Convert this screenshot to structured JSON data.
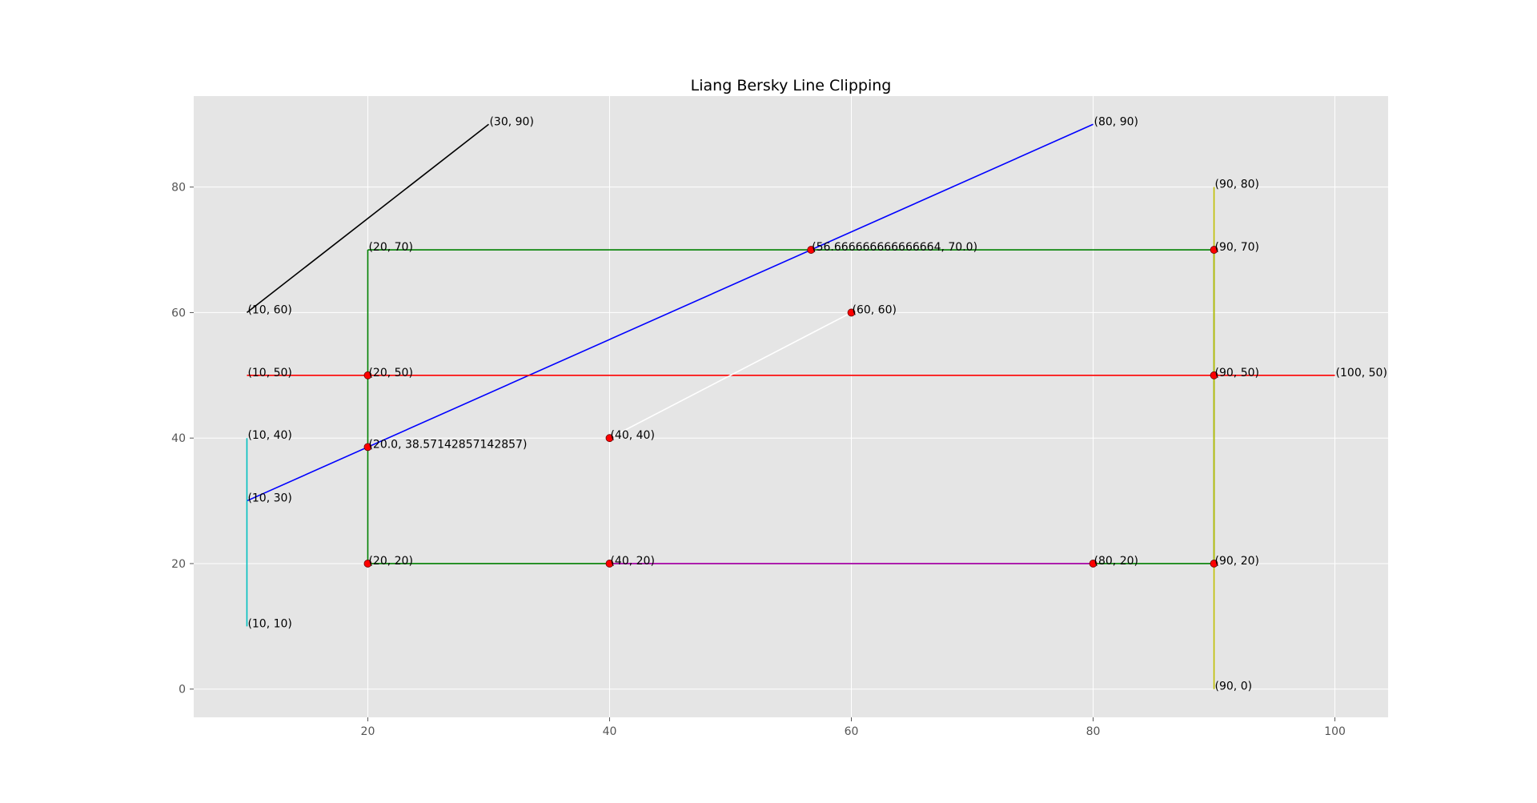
{
  "chart_data": {
    "type": "line",
    "title": "Liang Bersky Line Clipping",
    "xlabel": "",
    "ylabel": "",
    "xlim": [
      5.6,
      104.4
    ],
    "ylim": [
      -4.5,
      94.5
    ],
    "grid": true,
    "background": "#e5e5e5",
    "xticks": [
      20,
      40,
      60,
      80,
      100
    ],
    "yticks": [
      0,
      20,
      40,
      60,
      80
    ],
    "series": [
      {
        "color": "#008000",
        "x": [
          20,
          90,
          90,
          20,
          20
        ],
        "y": [
          70,
          70,
          20,
          20,
          70
        ]
      },
      {
        "color": "#000000",
        "x": [
          10,
          30
        ],
        "y": [
          60,
          90
        ]
      },
      {
        "color": "#0000ff",
        "x": [
          10,
          80
        ],
        "y": [
          30,
          90
        ]
      },
      {
        "color": "#ff0000",
        "x": [
          10,
          100
        ],
        "y": [
          50,
          50
        ]
      },
      {
        "color": "#00bfbf",
        "x": [
          10,
          10
        ],
        "y": [
          10,
          40
        ]
      },
      {
        "color": "#ffffff",
        "x": [
          40,
          60
        ],
        "y": [
          40,
          60
        ]
      },
      {
        "color": "#bf00bf",
        "x": [
          40,
          80
        ],
        "y": [
          20,
          20
        ]
      },
      {
        "color": "#bfbf00",
        "x": [
          90,
          90
        ],
        "y": [
          0,
          80
        ]
      }
    ],
    "points": [
      {
        "x": 56.666666666666664,
        "y": 70
      },
      {
        "x": 90,
        "y": 70
      },
      {
        "x": 60,
        "y": 60
      },
      {
        "x": 20,
        "y": 50
      },
      {
        "x": 90,
        "y": 50
      },
      {
        "x": 40,
        "y": 40
      },
      {
        "x": 20,
        "y": 38.57142857142857
      },
      {
        "x": 20,
        "y": 20
      },
      {
        "x": 40,
        "y": 20
      },
      {
        "x": 80,
        "y": 20
      },
      {
        "x": 90,
        "y": 20
      }
    ],
    "annotations": [
      {
        "text": "(30, 90)",
        "x": 30,
        "y": 90
      },
      {
        "text": "(80, 90)",
        "x": 80,
        "y": 90
      },
      {
        "text": "(90, 80)",
        "x": 90,
        "y": 80
      },
      {
        "text": "(20, 70)",
        "x": 20,
        "y": 70
      },
      {
        "text": "(56.666666666666664, 70.0)",
        "x": 56.666666666666664,
        "y": 70
      },
      {
        "text": "(90, 70)",
        "x": 90,
        "y": 70
      },
      {
        "text": "(10, 60)",
        "x": 10,
        "y": 60
      },
      {
        "text": "(60, 60)",
        "x": 60,
        "y": 60
      },
      {
        "text": "(10, 50)",
        "x": 10,
        "y": 50
      },
      {
        "text": "(20, 50)",
        "x": 20,
        "y": 50
      },
      {
        "text": "(90, 50)",
        "x": 90,
        "y": 50
      },
      {
        "text": "(100, 50)",
        "x": 100,
        "y": 50
      },
      {
        "text": "(10, 40)",
        "x": 10,
        "y": 40
      },
      {
        "text": "(40, 40)",
        "x": 40,
        "y": 40
      },
      {
        "text": "(20.0, 38.57142857142857)",
        "x": 20,
        "y": 38.57142857142857
      },
      {
        "text": "(10, 30)",
        "x": 10,
        "y": 30
      },
      {
        "text": "(20, 20)",
        "x": 20,
        "y": 20
      },
      {
        "text": "(40, 20)",
        "x": 40,
        "y": 20
      },
      {
        "text": "(80, 20)",
        "x": 80,
        "y": 20
      },
      {
        "text": "(90, 20)",
        "x": 90,
        "y": 20
      },
      {
        "text": "(10, 10)",
        "x": 10,
        "y": 10
      },
      {
        "text": "(90, 0)",
        "x": 90,
        "y": 0
      }
    ],
    "point_color": "#ff0000"
  }
}
